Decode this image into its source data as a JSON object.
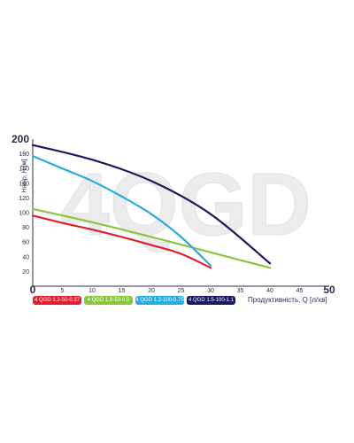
{
  "chart_data": {
    "type": "line",
    "watermark": "4QGD",
    "xlabel": "Продуктивність, Q [л/хв]",
    "ylabel": "Напір, H [м]",
    "xlim": [
      0,
      50
    ],
    "ylim": [
      0,
      200
    ],
    "x_ticks": [
      "0",
      "5",
      "10",
      "15",
      "20",
      "25",
      "30",
      "35",
      "40",
      "45",
      "50"
    ],
    "y_ticks": [
      "20",
      "40",
      "60",
      "80",
      "100",
      "120",
      "140",
      "160",
      "180",
      "200"
    ],
    "grid": false,
    "legend_position": "bottom",
    "series": [
      {
        "name": "4 QGD 1.2-50-0.37",
        "color": "#e0202e",
        "points": [
          [
            0,
            96
          ],
          [
            5,
            86
          ],
          [
            10,
            77
          ],
          [
            15,
            67
          ],
          [
            20,
            56
          ],
          [
            25,
            44
          ],
          [
            30,
            25
          ]
        ]
      },
      {
        "name": "4 QGD 1.8-50-0.5",
        "color": "#8cc63f",
        "points": [
          [
            0,
            105
          ],
          [
            10,
            87
          ],
          [
            20,
            67
          ],
          [
            30,
            46
          ],
          [
            40,
            25
          ]
        ]
      },
      {
        "name": "4 QGD 1.2-100-0.75",
        "color": "#29abe2",
        "points": [
          [
            0,
            177
          ],
          [
            5,
            160
          ],
          [
            10,
            143
          ],
          [
            15,
            122
          ],
          [
            20,
            98
          ],
          [
            25,
            67
          ],
          [
            30,
            28
          ]
        ]
      },
      {
        "name": "4 QGD 1.5-100-1.1",
        "color": "#1b1a5e",
        "points": [
          [
            0,
            192
          ],
          [
            10,
            172
          ],
          [
            20,
            143
          ],
          [
            30,
            98
          ],
          [
            40,
            31
          ]
        ]
      }
    ]
  }
}
